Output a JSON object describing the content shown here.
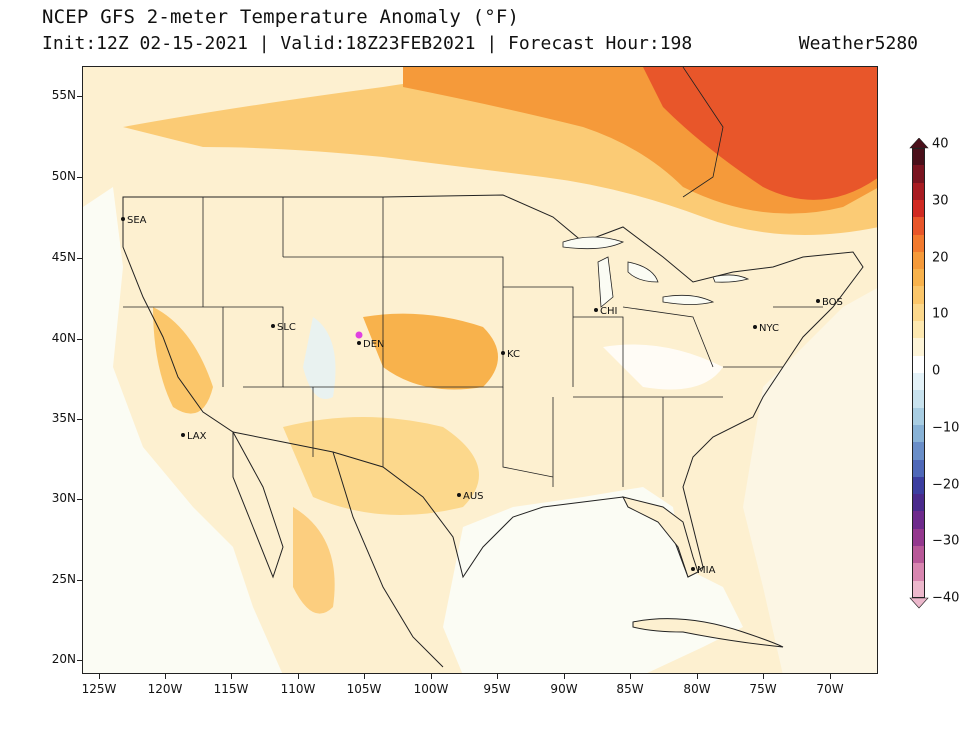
{
  "header": {
    "title": "NCEP GFS 2-meter Temperature Anomaly (°F)",
    "subtitle": "Init:12Z 02-15-2021 | Valid:18Z23FEB2021 | Forecast Hour:198",
    "credit": "Weather5280"
  },
  "map": {
    "lat_labels": [
      "55N",
      "50N",
      "45N",
      "40N",
      "35N",
      "30N",
      "25N",
      "20N"
    ],
    "lon_labels": [
      "125W",
      "120W",
      "115W",
      "110W",
      "105W",
      "100W",
      "95W",
      "90W",
      "85W",
      "80W",
      "75W",
      "70W"
    ],
    "cities": [
      {
        "name": "SEA"
      },
      {
        "name": "SLC"
      },
      {
        "name": "DEN"
      },
      {
        "name": "KC"
      },
      {
        "name": "CHI"
      },
      {
        "name": "BOS"
      },
      {
        "name": "NYC"
      },
      {
        "name": "LAX"
      },
      {
        "name": "AUS"
      },
      {
        "name": "MIA"
      }
    ],
    "colors": {
      "ocean_neutral": "#fbfcf4",
      "warm_light": "#fde8b0",
      "warm_mid": "#fbc66a",
      "warm_strong": "#f59a3a",
      "hot": "#e8562a",
      "marker_magenta": "#e040e0"
    }
  },
  "colorbar": {
    "labels": [
      "40",
      "30",
      "20",
      "10",
      "0",
      "−10",
      "−20",
      "−30",
      "−40"
    ],
    "colors_top_to_bottom": [
      "#4a0f1a",
      "#7a1420",
      "#a81c22",
      "#d02a22",
      "#e8562a",
      "#f27a2e",
      "#f59a3a",
      "#f8b24c",
      "#fbc66a",
      "#fcd88c",
      "#fde8b0",
      "#fdf4d8",
      "#ffffff",
      "#e4f2f8",
      "#c8e2ee",
      "#a8cde2",
      "#88b2d6",
      "#6a8ec8",
      "#4f68b8",
      "#3c3ea0",
      "#4a2a8c",
      "#6e2a8c",
      "#94388e",
      "#b85898",
      "#d886b0",
      "#ecb8cc"
    ]
  }
}
